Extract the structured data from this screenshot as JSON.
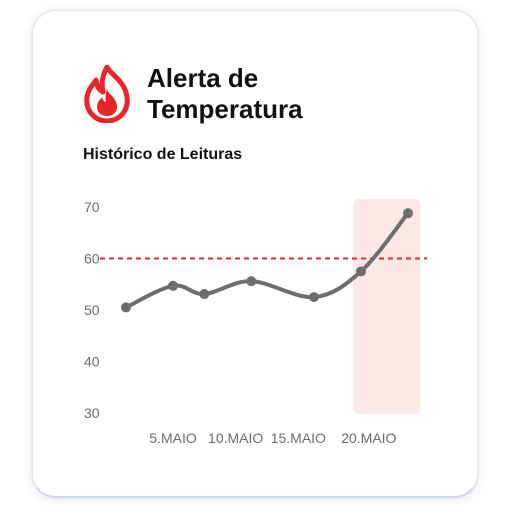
{
  "header": {
    "title": "Alerta de Temperatura",
    "subtitle": "Histórico de Leituras",
    "icon": "flame-icon"
  },
  "colors": {
    "accent": "#e8262a",
    "line": "#6e6e6e",
    "threshold": "#d32f2f",
    "highlight": "#fde8e8"
  },
  "chart_data": {
    "type": "line",
    "x": [
      1,
      4,
      6,
      9,
      13,
      16,
      19
    ],
    "values": [
      50.5,
      54.7,
      53.1,
      55.6,
      52.5,
      57.5,
      68.8
    ],
    "xticks": [
      {
        "pos": 4,
        "label": "5.MAIO"
      },
      {
        "pos": 8,
        "label": "10.MAIO"
      },
      {
        "pos": 12,
        "label": "15.MAIO"
      },
      {
        "pos": 16.5,
        "label": "20.MAIO"
      }
    ],
    "yticks": [
      30,
      40,
      50,
      60,
      70
    ],
    "ylim": [
      30,
      70
    ],
    "threshold": 60,
    "highlight_range": [
      15.5,
      19.8
    ],
    "grid": false,
    "legend": false
  }
}
